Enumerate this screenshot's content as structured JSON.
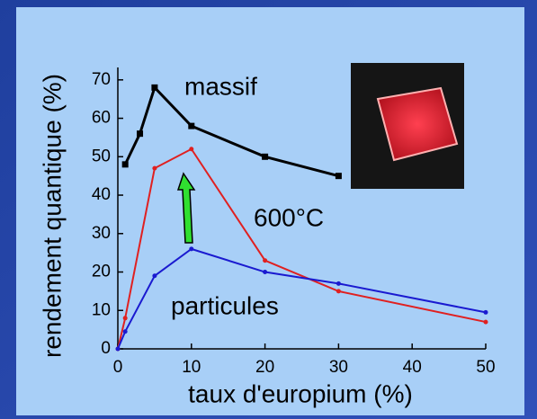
{
  "chart_data": {
    "type": "line",
    "x_label": "taux d'europium (%)",
    "y_label": "rendement quantique (%)",
    "xlim": [
      0,
      50
    ],
    "ylim": [
      0,
      73
    ],
    "xticks": [
      0,
      10,
      20,
      30,
      40,
      50
    ],
    "yticks": [
      0,
      10,
      20,
      30,
      40,
      50,
      60,
      70
    ],
    "series": [
      {
        "name": "massif",
        "color": "#000000",
        "marker": "square",
        "x": [
          1,
          3,
          5,
          10,
          20,
          30
        ],
        "values": [
          48,
          56,
          68,
          58,
          50,
          45
        ]
      },
      {
        "name": "600°C",
        "color": "#e02020",
        "marker": "dot",
        "x": [
          0,
          1,
          5,
          10,
          20,
          30,
          50
        ],
        "values": [
          0,
          8,
          47,
          52,
          23,
          15,
          7
        ]
      },
      {
        "name": "particules",
        "color": "#1a1ad0",
        "marker": "dot",
        "x": [
          0,
          1,
          5,
          10,
          20,
          30,
          50
        ],
        "values": [
          0,
          4.5,
          19,
          26,
          20,
          17,
          9.5
        ]
      }
    ]
  }
}
